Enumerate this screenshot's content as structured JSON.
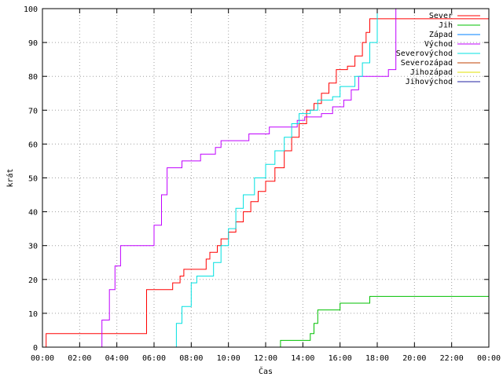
{
  "chart_data": {
    "type": "line",
    "title": "",
    "xlabel": "Čas",
    "ylabel": "krát",
    "xlim": [
      0,
      24
    ],
    "ylim": [
      0,
      100
    ],
    "x_ticks": [
      0,
      2,
      4,
      6,
      8,
      10,
      12,
      14,
      16,
      18,
      20,
      22,
      24
    ],
    "x_tick_labels": [
      "00:00",
      "02:00",
      "04:00",
      "06:00",
      "08:00",
      "10:00",
      "12:00",
      "14:00",
      "16:00",
      "18:00",
      "20:00",
      "22:00",
      "00:00"
    ],
    "y_ticks": [
      0,
      10,
      20,
      30,
      40,
      50,
      60,
      70,
      80,
      90,
      100
    ],
    "y_tick_labels": [
      "0",
      "10",
      "20",
      "30",
      "40",
      "50",
      "60",
      "70",
      "80",
      "90",
      "100"
    ],
    "grid": true,
    "legend_position": "top-right",
    "series": [
      {
        "name": "Sever",
        "color": "#ff0000",
        "points": [
          [
            0,
            0
          ],
          [
            0.2,
            4
          ],
          [
            5.2,
            4
          ],
          [
            5.6,
            17
          ],
          [
            6.8,
            17
          ],
          [
            7.0,
            19
          ],
          [
            7.4,
            21
          ],
          [
            7.6,
            23
          ],
          [
            8.6,
            23
          ],
          [
            8.8,
            26
          ],
          [
            9.0,
            28
          ],
          [
            9.4,
            30
          ],
          [
            9.6,
            32
          ],
          [
            10.0,
            34
          ],
          [
            10.4,
            37
          ],
          [
            10.8,
            40
          ],
          [
            11.2,
            43
          ],
          [
            11.6,
            46
          ],
          [
            12.0,
            49
          ],
          [
            12.5,
            53
          ],
          [
            13.0,
            58
          ],
          [
            13.4,
            62
          ],
          [
            13.8,
            66
          ],
          [
            14.2,
            70
          ],
          [
            14.6,
            72
          ],
          [
            15.0,
            75
          ],
          [
            15.4,
            78
          ],
          [
            15.8,
            82
          ],
          [
            16.4,
            83
          ],
          [
            16.8,
            86
          ],
          [
            17.2,
            90
          ],
          [
            17.4,
            93
          ],
          [
            17.6,
            97
          ],
          [
            24,
            97
          ]
        ]
      },
      {
        "name": "Jih",
        "color": "#00c000",
        "points": [
          [
            12.7,
            0
          ],
          [
            12.8,
            2
          ],
          [
            14.2,
            2
          ],
          [
            14.4,
            4
          ],
          [
            14.6,
            7
          ],
          [
            14.8,
            11
          ],
          [
            15.8,
            11
          ],
          [
            16.0,
            13
          ],
          [
            17.5,
            13
          ],
          [
            17.6,
            15
          ],
          [
            24,
            15
          ]
        ]
      },
      {
        "name": "Západ",
        "color": "#0080ff",
        "points": []
      },
      {
        "name": "Východ",
        "color": "#c000ff",
        "points": [
          [
            2.9,
            0
          ],
          [
            3.2,
            8
          ],
          [
            3.6,
            17
          ],
          [
            3.9,
            24
          ],
          [
            4.2,
            30
          ],
          [
            5.8,
            30
          ],
          [
            6.0,
            36
          ],
          [
            6.4,
            45
          ],
          [
            6.7,
            53
          ],
          [
            7.3,
            53
          ],
          [
            7.5,
            55
          ],
          [
            8.2,
            55
          ],
          [
            8.5,
            57
          ],
          [
            9.1,
            57
          ],
          [
            9.3,
            59
          ],
          [
            9.6,
            61
          ],
          [
            10.9,
            61
          ],
          [
            11.1,
            63
          ],
          [
            11.9,
            63
          ],
          [
            12.2,
            65
          ],
          [
            13.4,
            65
          ],
          [
            13.7,
            67
          ],
          [
            14.1,
            68
          ],
          [
            15.0,
            69
          ],
          [
            15.6,
            71
          ],
          [
            16.2,
            73
          ],
          [
            16.6,
            76
          ],
          [
            17.0,
            80
          ],
          [
            18.3,
            80
          ],
          [
            18.6,
            82
          ],
          [
            19.0,
            100
          ]
        ]
      },
      {
        "name": "Severovýchod",
        "color": "#00e0e0",
        "points": [
          [
            6.9,
            0
          ],
          [
            7.2,
            7
          ],
          [
            7.5,
            12
          ],
          [
            8.0,
            19
          ],
          [
            8.3,
            21
          ],
          [
            9.0,
            21
          ],
          [
            9.2,
            25
          ],
          [
            9.6,
            30
          ],
          [
            10.0,
            35
          ],
          [
            10.4,
            41
          ],
          [
            10.8,
            45
          ],
          [
            11.4,
            50
          ],
          [
            12.0,
            54
          ],
          [
            12.5,
            58
          ],
          [
            13.0,
            62
          ],
          [
            13.4,
            66
          ],
          [
            13.8,
            69
          ],
          [
            14.4,
            70
          ],
          [
            14.8,
            73
          ],
          [
            15.6,
            74
          ],
          [
            16.0,
            77
          ],
          [
            16.8,
            80
          ],
          [
            17.2,
            84
          ],
          [
            17.6,
            90
          ],
          [
            18.0,
            100
          ]
        ]
      },
      {
        "name": "Severozápad",
        "color": "#c04000",
        "points": []
      },
      {
        "name": "Jihozápad",
        "color": "#e0e000",
        "points": []
      },
      {
        "name": "Jihovýchod",
        "color": "#2020a0",
        "points": []
      }
    ]
  }
}
